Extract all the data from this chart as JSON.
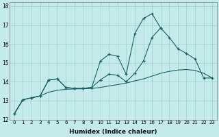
{
  "xlabel": "Humidex (Indice chaleur)",
  "background_color": "#c5eaea",
  "grid_color": "#9ecece",
  "line_color": "#1a6060",
  "xlim": [
    -0.5,
    23.5
  ],
  "ylim": [
    12,
    18.2
  ],
  "yticks": [
    12,
    13,
    14,
    15,
    16,
    17,
    18
  ],
  "xticks": [
    0,
    1,
    2,
    3,
    4,
    5,
    6,
    7,
    8,
    9,
    10,
    11,
    12,
    13,
    14,
    15,
    16,
    17,
    18,
    19,
    20,
    21,
    22,
    23
  ],
  "line1_x": [
    0,
    1,
    2,
    3,
    4,
    5,
    6,
    7,
    8,
    9,
    10,
    11,
    12,
    13,
    14,
    15,
    16,
    17
  ],
  "line1_y": [
    12.3,
    13.05,
    13.15,
    13.25,
    14.1,
    14.15,
    13.7,
    13.65,
    13.65,
    13.7,
    15.1,
    15.45,
    15.35,
    14.4,
    16.55,
    17.35,
    17.6,
    16.85
  ],
  "line2_x": [
    0,
    1,
    2,
    3,
    4,
    5,
    6,
    7,
    8,
    9,
    10,
    11,
    12,
    13,
    14,
    15,
    16,
    17,
    18,
    19,
    20,
    21,
    22,
    23
  ],
  "line2_y": [
    12.3,
    13.05,
    13.15,
    13.25,
    13.45,
    13.55,
    13.6,
    13.62,
    13.63,
    13.65,
    13.7,
    13.78,
    13.85,
    13.93,
    14.05,
    14.15,
    14.3,
    14.45,
    14.55,
    14.62,
    14.65,
    14.6,
    14.45,
    14.2
  ],
  "line3_x": [
    0,
    1,
    2,
    3,
    4,
    5,
    6,
    7,
    8,
    9,
    10,
    11,
    12,
    13,
    14,
    15,
    16,
    17,
    18,
    19,
    20,
    21,
    22,
    23
  ],
  "line3_y": [
    12.3,
    13.05,
    13.15,
    13.25,
    14.1,
    14.15,
    13.7,
    13.65,
    13.65,
    13.7,
    14.1,
    14.4,
    14.35,
    14.0,
    14.45,
    15.1,
    16.35,
    16.85,
    16.35,
    15.75,
    15.5,
    15.2,
    14.2,
    14.2
  ]
}
